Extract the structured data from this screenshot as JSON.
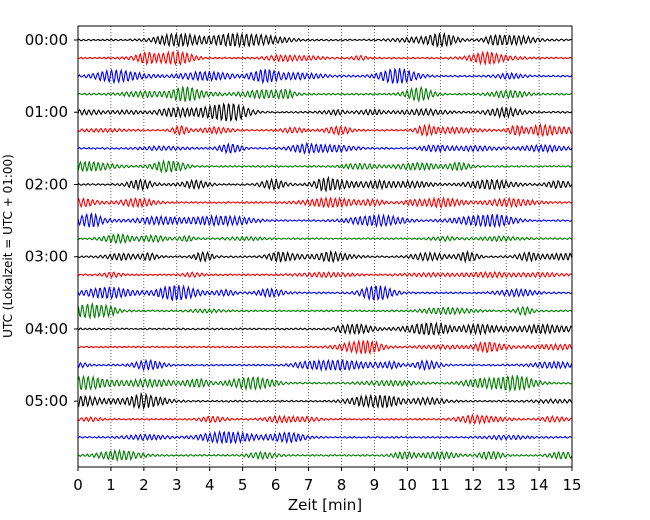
{
  "chart_data": {
    "type": "line",
    "chart_subtype": "helicorder",
    "xlabel": "Zeit  [min]",
    "ylabel": "UTC (Lokalzeit = UTC + 01:00)",
    "xlim": [
      0,
      15
    ],
    "x_ticks": [
      "0",
      "1",
      "2",
      "3",
      "4",
      "5",
      "6",
      "7",
      "8",
      "9",
      "10",
      "11",
      "12",
      "13",
      "14",
      "15"
    ],
    "y_tick_labels": [
      "00:00",
      "01:00",
      "02:00",
      "03:00",
      "04:00",
      "05:00"
    ],
    "row_interval_min": 15,
    "row_count": 24,
    "series_colors": [
      "#000000",
      "#ff0000",
      "#0000ff",
      "#007f00"
    ],
    "grid": {
      "vertical_dotted": true
    },
    "legend": "none"
  }
}
